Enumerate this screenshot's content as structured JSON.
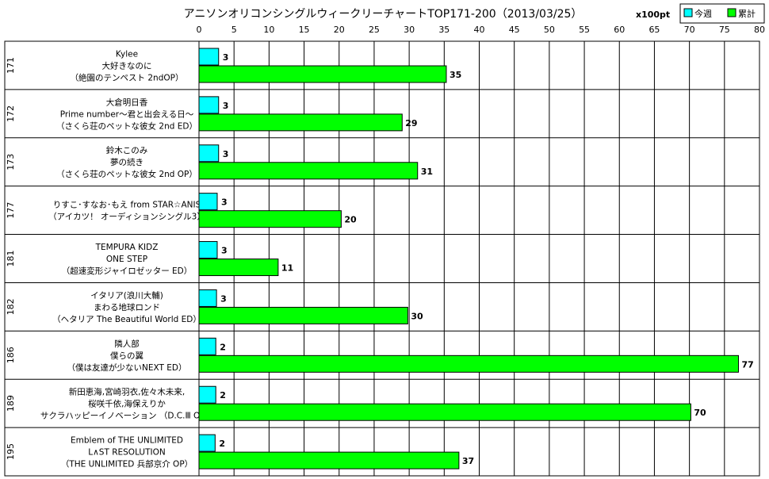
{
  "chart_data": {
    "type": "bar",
    "title": "アニソンオリコンシングルウィークリーチャートTOP171-200（2013/03/25）",
    "unit": "x100pt",
    "xlim": [
      0,
      80
    ],
    "ticks": [
      0,
      5,
      10,
      15,
      20,
      25,
      30,
      35,
      40,
      45,
      50,
      55,
      60,
      65,
      70,
      75,
      80
    ],
    "grid": true,
    "legend_position": "top-right",
    "series": [
      {
        "name": "今週",
        "color": "#00ffff",
        "values": [
          2.8,
          2.8,
          2.8,
          2.6,
          2.6,
          2.5,
          2.4,
          2.4,
          2.3
        ]
      },
      {
        "name": "累計",
        "color": "#00ff00",
        "values": [
          35.3,
          29.0,
          31.2,
          20.3,
          11.3,
          29.8,
          77.0,
          70.2,
          37.1
        ]
      }
    ],
    "value_labels": {
      "今週": [
        "3",
        "3",
        "3",
        "3",
        "3",
        "3",
        "2",
        "2",
        "2"
      ],
      "累計": [
        "35",
        "29",
        "31",
        "20",
        "11",
        "30",
        "77",
        "70",
        "37"
      ]
    },
    "categories": [
      {
        "rank": "171",
        "lines": [
          "Kylee",
          "大好きなのに",
          "（絶園のテンペスト 2ndOP）"
        ]
      },
      {
        "rank": "172",
        "lines": [
          "大倉明日香",
          "Prime number～君と出会える日～",
          "（さくら荘のペットな彼女 2nd ED）"
        ]
      },
      {
        "rank": "173",
        "lines": [
          "鈴木このみ",
          "夢の続き",
          "（さくら荘のペットな彼女 2nd OP）"
        ]
      },
      {
        "rank": "177",
        "lines": [
          "りすこ･すなお･もえ from STAR☆ANIS",
          "（アイカツ！ オーディションシングル3）"
        ]
      },
      {
        "rank": "181",
        "lines": [
          "TEMPURA KIDZ",
          "ONE STEP",
          "（超速変形ジャイロゼッター ED）"
        ]
      },
      {
        "rank": "182",
        "lines": [
          "イタリア(浪川大輔)",
          "まわる地球ロンド",
          "（ヘタリア The Beautiful World ED）"
        ]
      },
      {
        "rank": "186",
        "lines": [
          "隣人部",
          "僕らの翼",
          "（僕は友達が少ないNEXT ED）"
        ]
      },
      {
        "rank": "189",
        "lines": [
          "新田恵海,宮崎羽衣,佐々木未来,",
          "桜咲千依,海保えりか",
          "サクラハッピーイノベーション （D.C.Ⅲ OP）"
        ]
      },
      {
        "rank": "195",
        "lines": [
          "Emblem of THE UNLIMITED",
          "L∧ST RESOLUTION",
          "（THE UNLIMITED 兵部京介 OP）"
        ]
      }
    ]
  }
}
